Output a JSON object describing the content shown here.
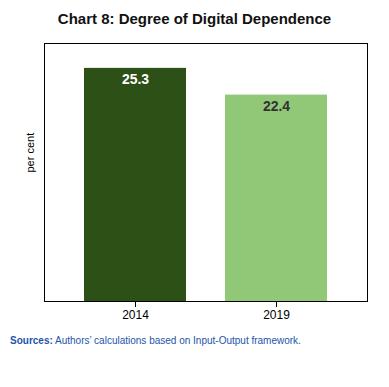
{
  "chart_data": {
    "type": "bar",
    "title": "Chart 8: Degree of Digital Dependence",
    "categories": [
      "2014",
      "2019"
    ],
    "values": [
      25.3,
      22.4
    ],
    "colors": [
      "#2d5016",
      "#90c878"
    ],
    "ylabel": "per cent",
    "ylim": [
      0,
      28
    ],
    "grid": false,
    "data_labels": true,
    "tick_labels": "x",
    "annotations": [
      "Sources:",
      "Authors’ calculations based on Input-Output framework."
    ]
  }
}
